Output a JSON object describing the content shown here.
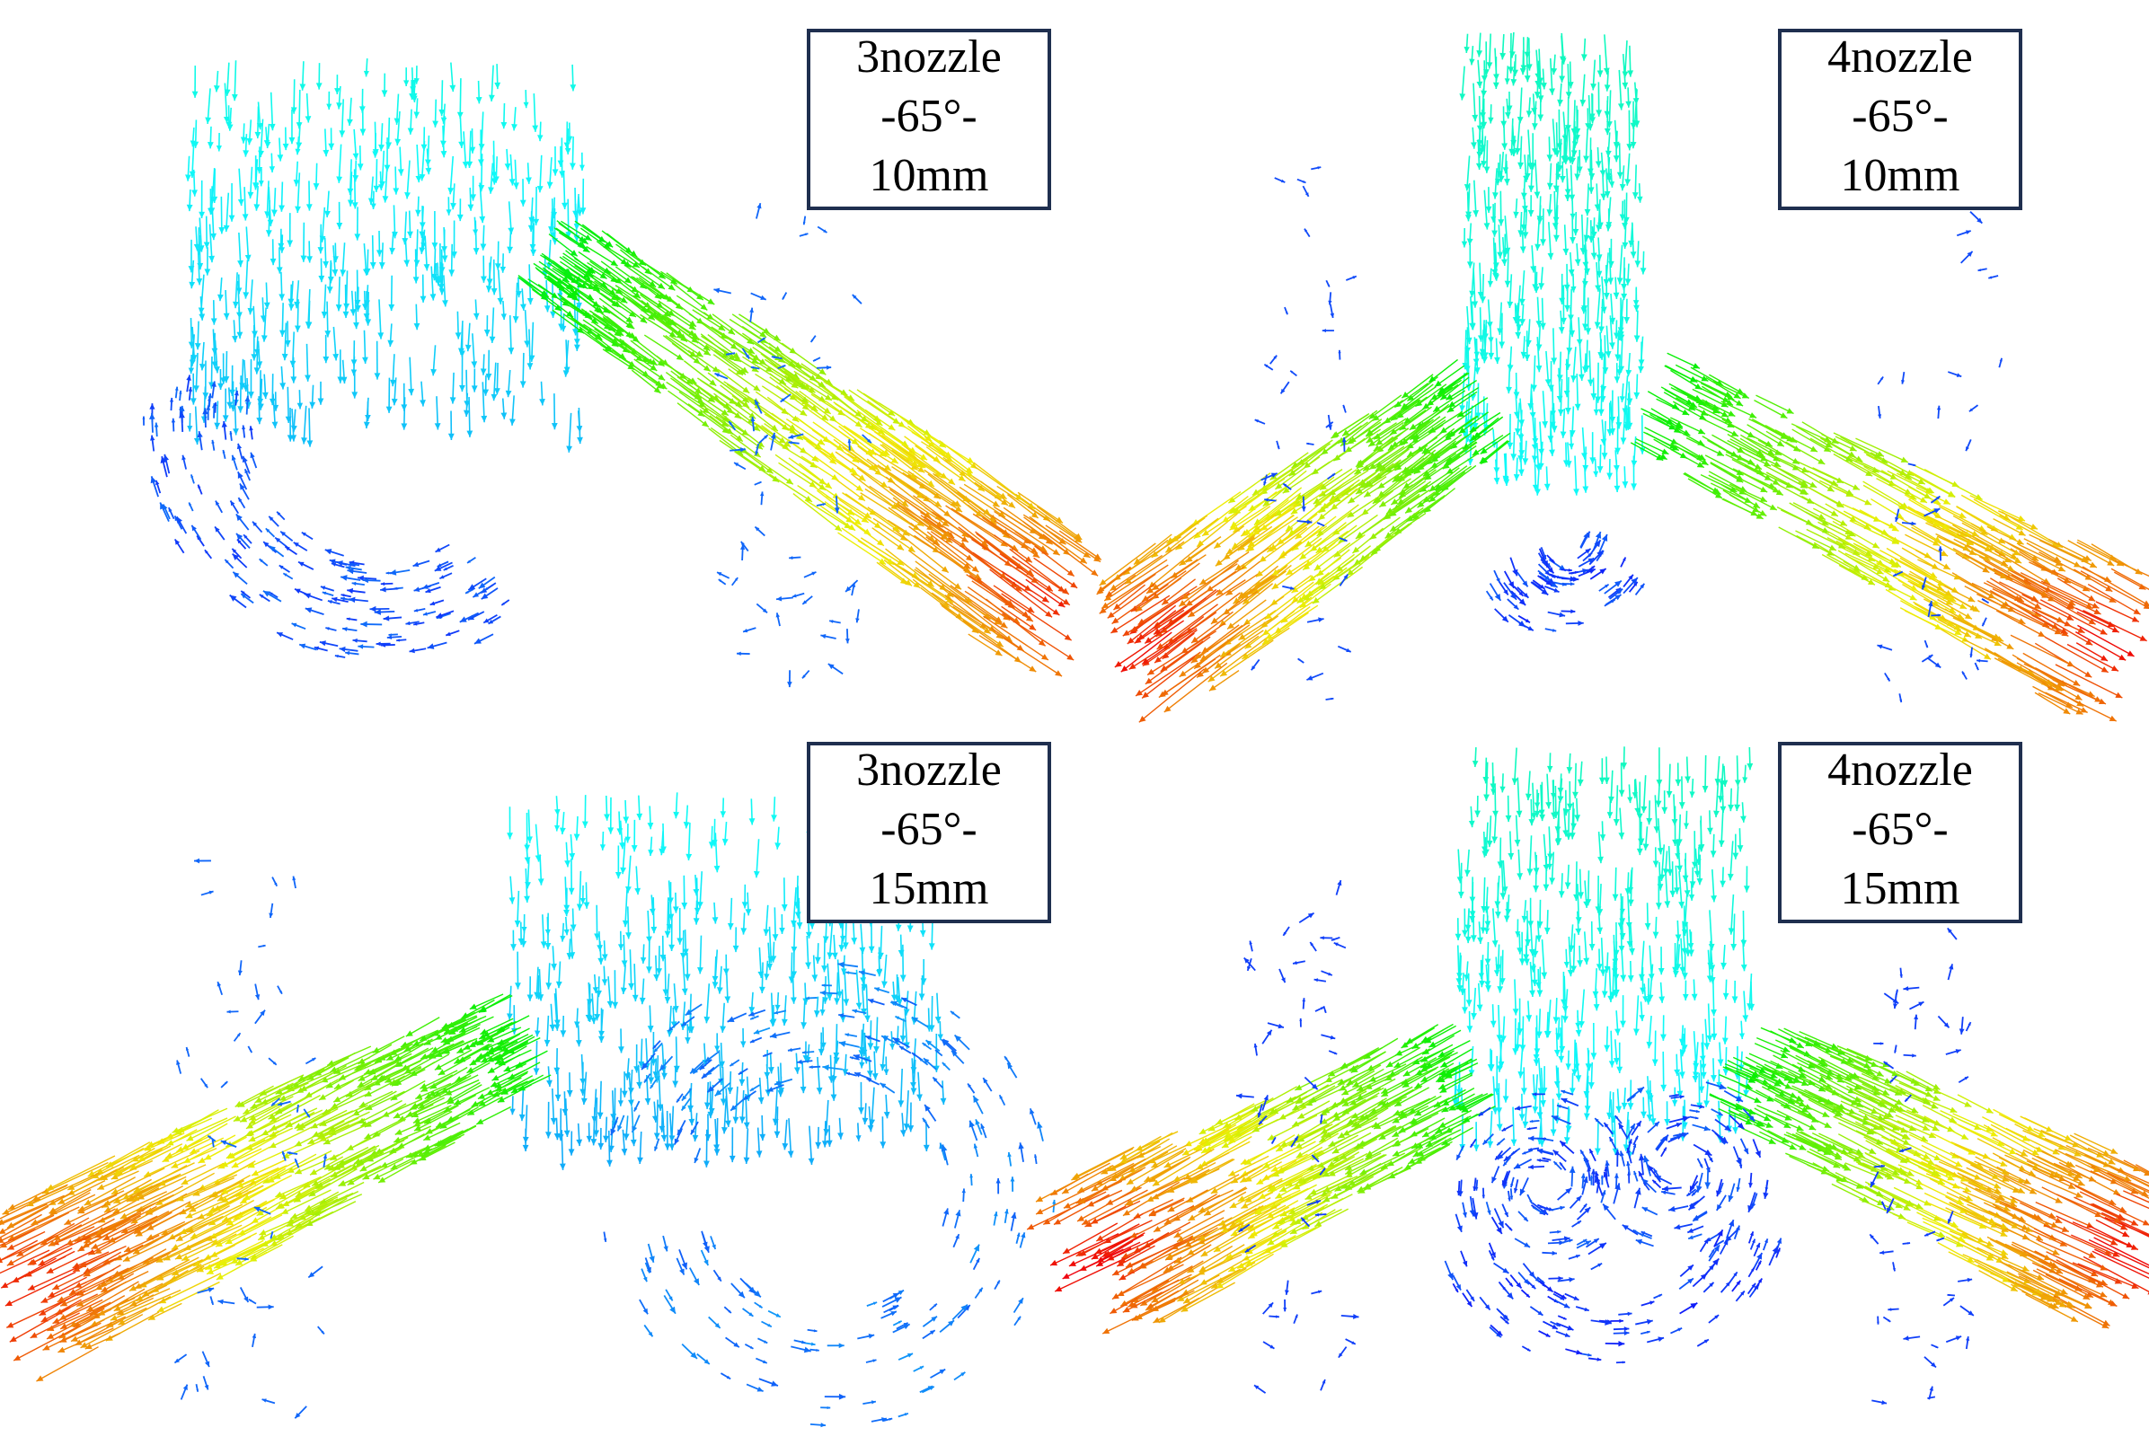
{
  "panels": [
    {
      "label": [
        "3nozzle",
        "-65°-",
        "10mm"
      ]
    },
    {
      "label": [
        "4nozzle",
        "-65°-",
        "10mm"
      ]
    },
    {
      "label": [
        "3nozzle",
        "-65°-",
        "15mm"
      ]
    },
    {
      "label": [
        "4nozzle",
        "-65°-",
        "15mm"
      ]
    }
  ]
}
